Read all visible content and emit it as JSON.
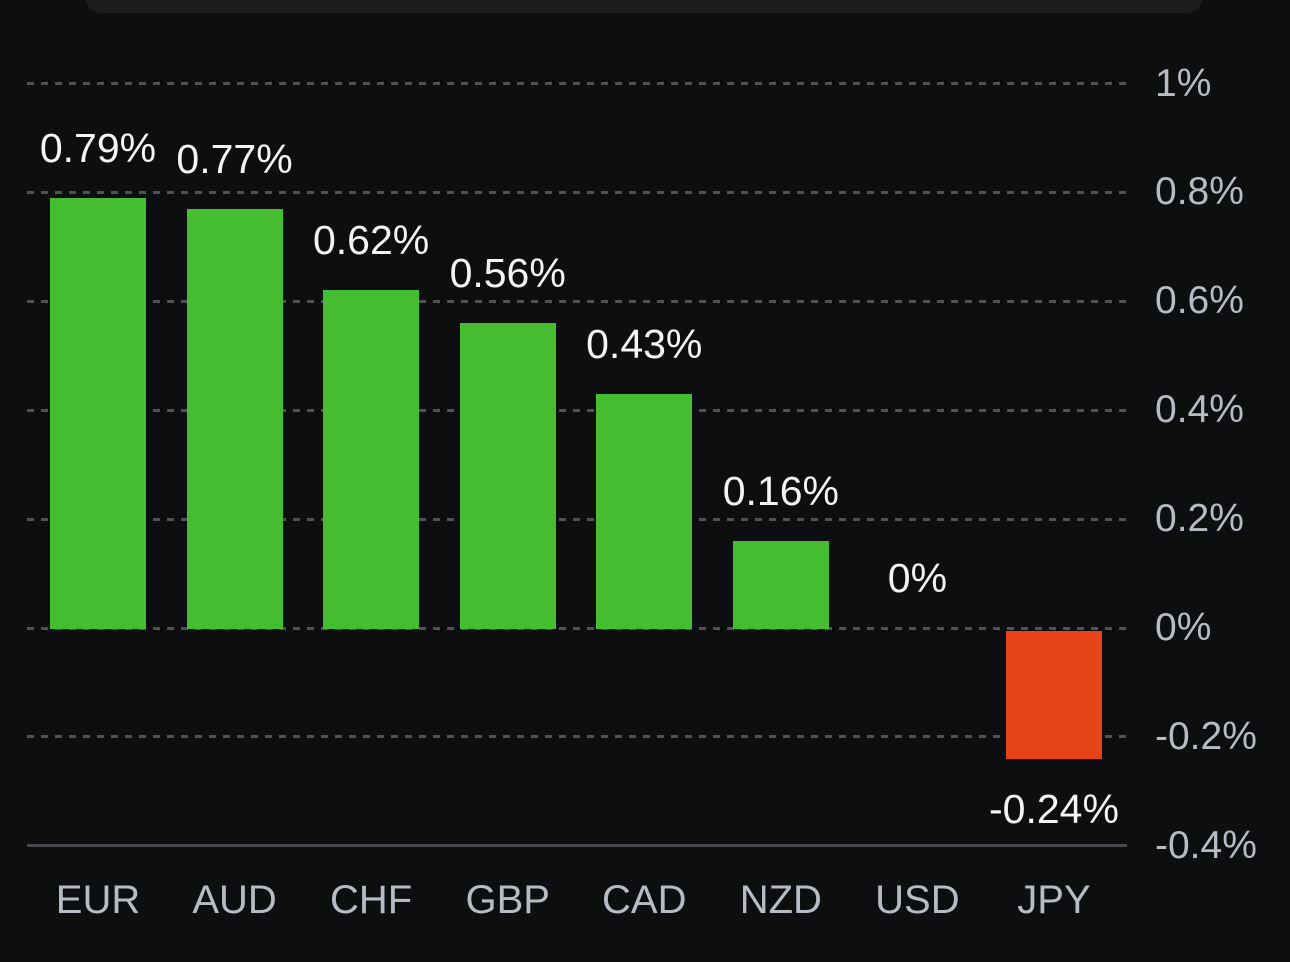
{
  "chart_data": {
    "type": "bar",
    "categories": [
      "EUR",
      "AUD",
      "CHF",
      "GBP",
      "CAD",
      "NZD",
      "USD",
      "JPY"
    ],
    "values": [
      0.79,
      0.77,
      0.62,
      0.56,
      0.43,
      0.16,
      0,
      -0.24
    ],
    "bar_labels": [
      "0.79%",
      "0.77%",
      "0.62%",
      "0.56%",
      "0.43%",
      "0.16%",
      "0%",
      "-0.24%"
    ],
    "xlabel": "",
    "ylabel": "",
    "ylim": [
      -0.4,
      1.0
    ],
    "y_ticks": [
      {
        "value": 1.0,
        "label": "1%"
      },
      {
        "value": 0.8,
        "label": "0.8%"
      },
      {
        "value": 0.6,
        "label": "0.6%"
      },
      {
        "value": 0.4,
        "label": "0.4%"
      },
      {
        "value": 0.2,
        "label": "0.2%"
      },
      {
        "value": 0.0,
        "label": "0%"
      },
      {
        "value": -0.2,
        "label": "-0.2%"
      },
      {
        "value": -0.4,
        "label": "-0.4%"
      }
    ],
    "grid": "dashed horizontal, baseline solid at -0.4%",
    "legend": "none",
    "axis_side": "right",
    "colors": {
      "positive_bar": "#45bd31",
      "negative_bar": "#e74318",
      "background": "#0d0e10",
      "top_strip": "#1a1c1e",
      "grid": "#505356",
      "axis_line": "#45484c",
      "axis_text": "#b6bbc4",
      "bar_label_text": "#f2f4f6"
    }
  }
}
